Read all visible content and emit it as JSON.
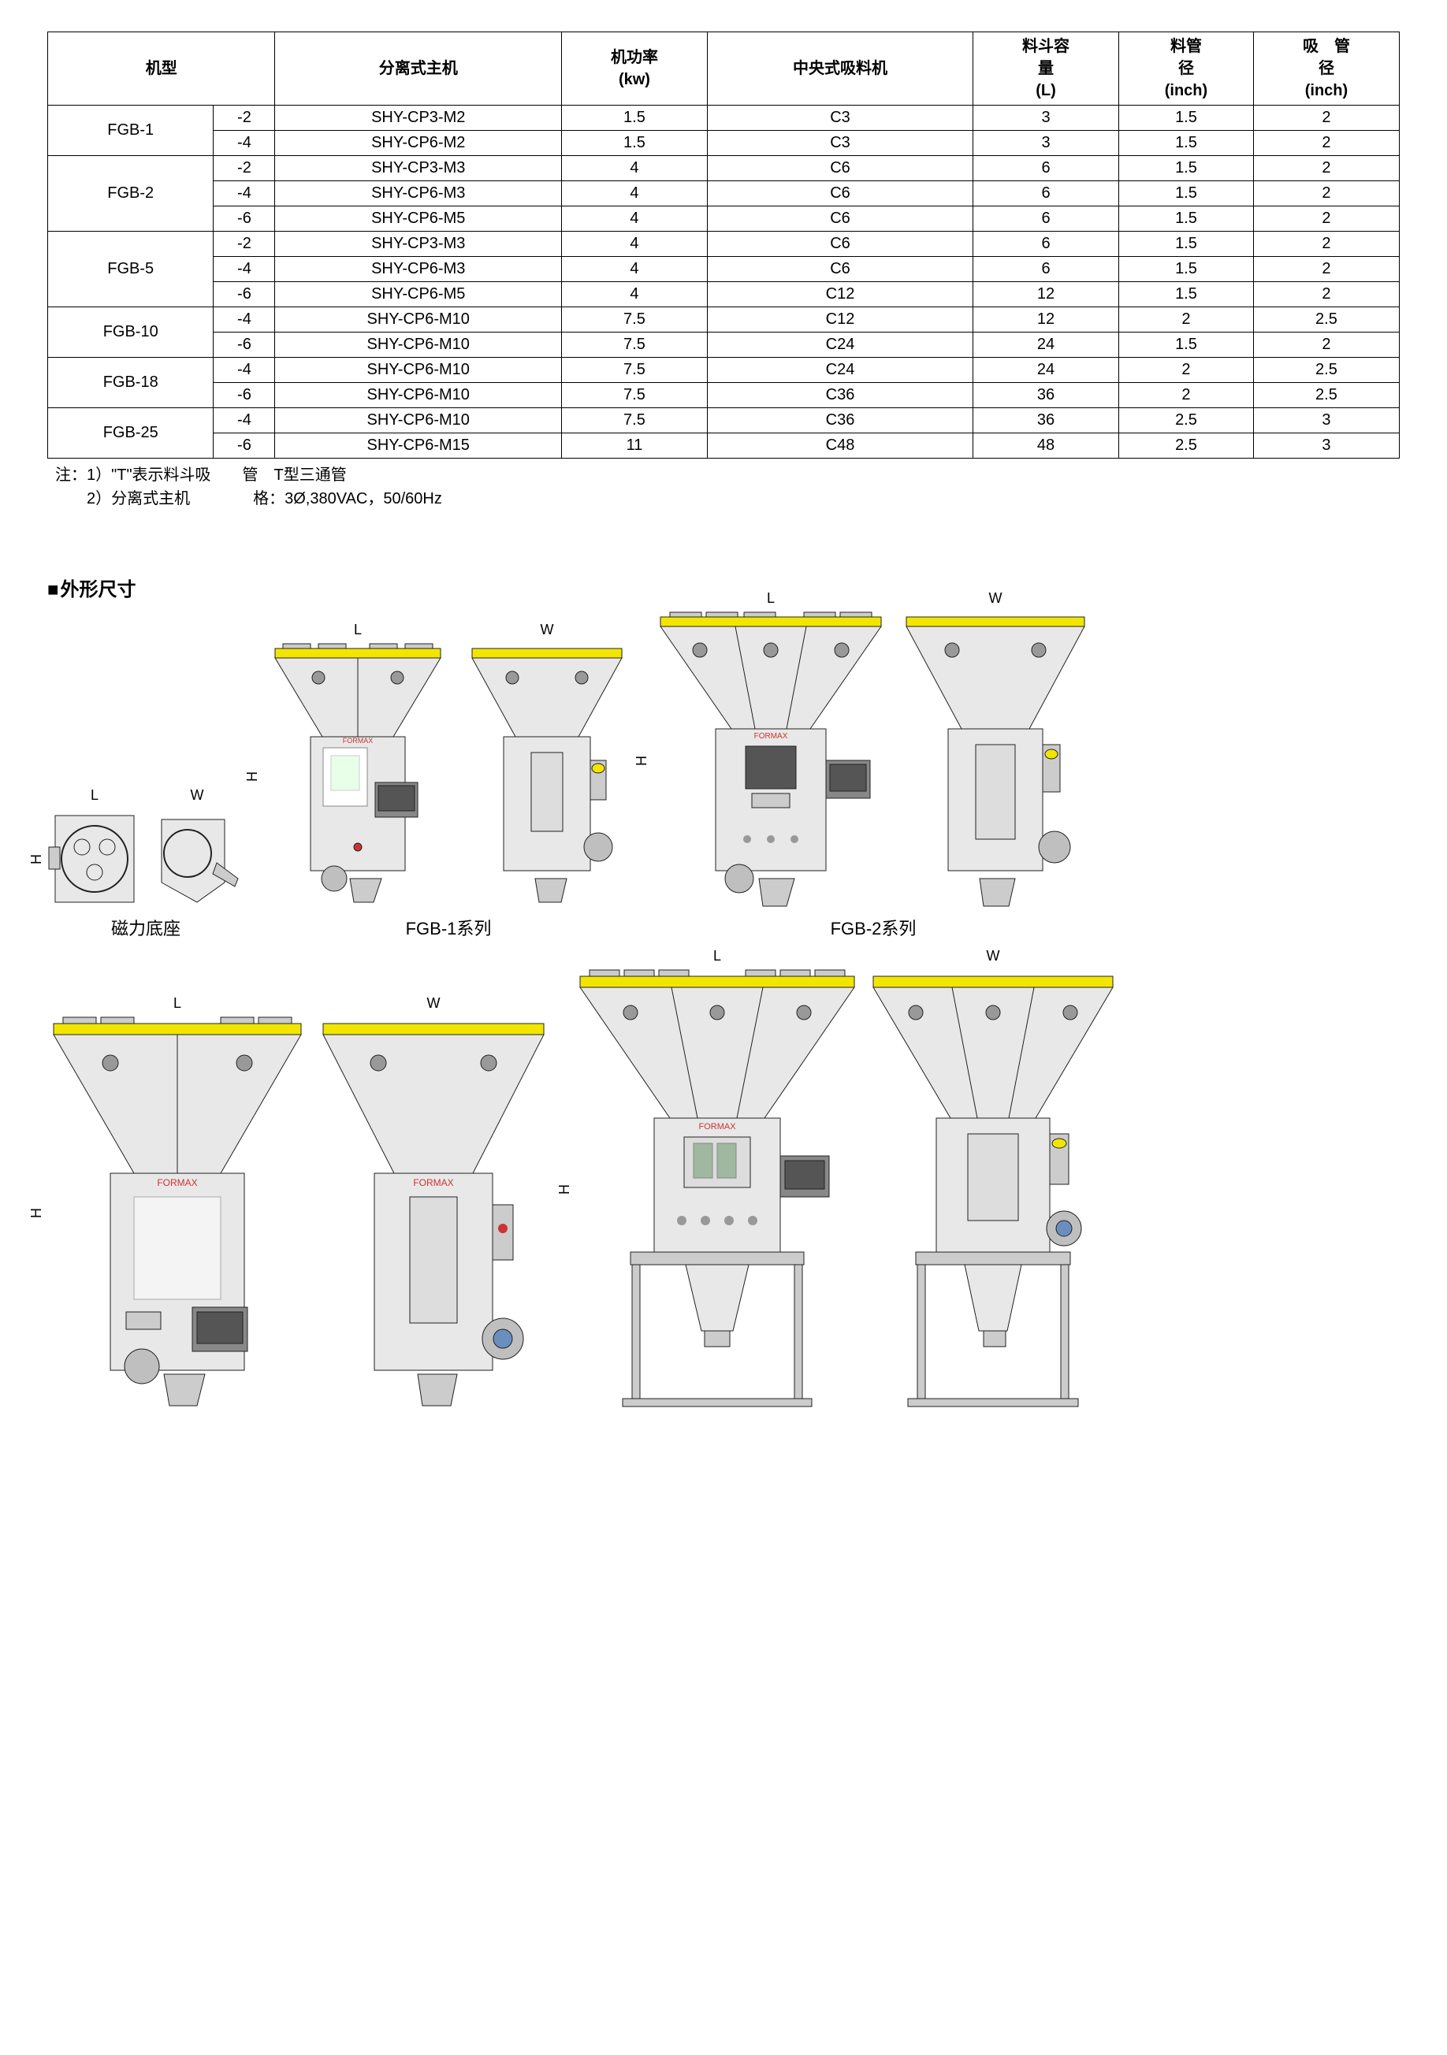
{
  "table_headers": {
    "model": "机型",
    "sep_host": "分离式主机",
    "power": "机功率\n(kw)",
    "loader": "中央式吸料机",
    "hopper_cap": "料斗容\n量\n(L)",
    "pipe_dia": "料管\n径\n(inch)",
    "suction_dia": "吸　管\n径\n(inch)"
  },
  "table_groups": [
    {
      "model": "FGB-1",
      "rows": [
        {
          "sub": "-2",
          "host": "SHY-CP3-M2",
          "kw": "1.5",
          "loader": "C3",
          "cap": "3",
          "pipe": "1.5",
          "suct": "2"
        },
        {
          "sub": "-4",
          "host": "SHY-CP6-M2",
          "kw": "1.5",
          "loader": "C3",
          "cap": "3",
          "pipe": "1.5",
          "suct": "2"
        }
      ]
    },
    {
      "model": "FGB-2",
      "rows": [
        {
          "sub": "-2",
          "host": "SHY-CP3-M3",
          "kw": "4",
          "loader": "C6",
          "cap": "6",
          "pipe": "1.5",
          "suct": "2"
        },
        {
          "sub": "-4",
          "host": "SHY-CP6-M3",
          "kw": "4",
          "loader": "C6",
          "cap": "6",
          "pipe": "1.5",
          "suct": "2"
        },
        {
          "sub": "-6",
          "host": "SHY-CP6-M5",
          "kw": "4",
          "loader": "C6",
          "cap": "6",
          "pipe": "1.5",
          "suct": "2"
        }
      ]
    },
    {
      "model": "FGB-5",
      "rows": [
        {
          "sub": "-2",
          "host": "SHY-CP3-M3",
          "kw": "4",
          "loader": "C6",
          "cap": "6",
          "pipe": "1.5",
          "suct": "2"
        },
        {
          "sub": "-4",
          "host": "SHY-CP6-M3",
          "kw": "4",
          "loader": "C6",
          "cap": "6",
          "pipe": "1.5",
          "suct": "2"
        },
        {
          "sub": "-6",
          "host": "SHY-CP6-M5",
          "kw": "4",
          "loader": "C12",
          "cap": "12",
          "pipe": "1.5",
          "suct": "2"
        }
      ]
    },
    {
      "model": "FGB-10",
      "rows": [
        {
          "sub": "-4",
          "host": "SHY-CP6-M10",
          "kw": "7.5",
          "loader": "C12",
          "cap": "12",
          "pipe": "2",
          "suct": "2.5"
        },
        {
          "sub": "-6",
          "host": "SHY-CP6-M10",
          "kw": "7.5",
          "loader": "C24",
          "cap": "24",
          "pipe": "1.5",
          "suct": "2"
        }
      ]
    },
    {
      "model": "FGB-18",
      "rows": [
        {
          "sub": "-4",
          "host": "SHY-CP6-M10",
          "kw": "7.5",
          "loader": "C24",
          "cap": "24",
          "pipe": "2",
          "suct": "2.5"
        },
        {
          "sub": "-6",
          "host": "SHY-CP6-M10",
          "kw": "7.5",
          "loader": "C36",
          "cap": "36",
          "pipe": "2",
          "suct": "2.5"
        }
      ]
    },
    {
      "model": "FGB-25",
      "rows": [
        {
          "sub": "-4",
          "host": "SHY-CP6-M10",
          "kw": "7.5",
          "loader": "C36",
          "cap": "36",
          "pipe": "2.5",
          "suct": "3"
        },
        {
          "sub": "-6",
          "host": "SHY-CP6-M15",
          "kw": "11",
          "loader": "C48",
          "cap": "48",
          "pipe": "2.5",
          "suct": "3"
        }
      ]
    }
  ],
  "notes": {
    "line1": "注：1）\"T\"表示料斗吸　　管　T型三通管",
    "line2": "　　2）分离式主机　　　　格：3Ø,380VAC，50/60Hz"
  },
  "section_title": "外形尺寸",
  "diagrams": {
    "dim_labels": {
      "L": "L",
      "W": "W",
      "H": "H"
    },
    "captions": {
      "magbase": "磁力底座",
      "fgb1": "FGB-1系列",
      "fgb2": "FGB-2系列"
    },
    "colors": {
      "body": "#e8e8e8",
      "body_dark": "#cccccc",
      "accent": "#f2e600",
      "outline": "#222222",
      "red": "#cc3333",
      "screen": "#666666",
      "base_metal": "#bfbfbf"
    }
  }
}
